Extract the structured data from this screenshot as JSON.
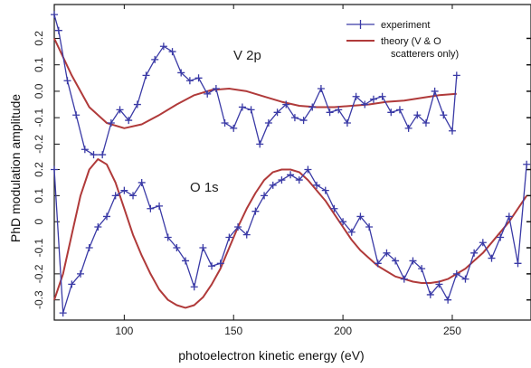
{
  "chart_data": {
    "type": "line",
    "title": "",
    "xlabel": "photoelectron kinetic energy (eV)",
    "ylabel": "PhD modulation amplitude",
    "xlim": [
      68,
      286
    ],
    "x_tick_labels": [
      "100",
      "150",
      "200",
      "250"
    ],
    "x_tick_values": [
      100,
      150,
      200,
      250
    ],
    "legend": {
      "placement": "top-right",
      "entries": [
        {
          "label": "experiment",
          "color": "#3a3aa6"
        },
        {
          "label": "theory (V & O",
          "label_line2": "scatterers only)",
          "color": "#b03a3a"
        }
      ]
    },
    "colors": {
      "experiment": "#3a3aa6",
      "theory": "#b03a3a"
    },
    "panels": [
      {
        "name": "V 2p",
        "ylim": [
          -0.25,
          0.27
        ],
        "y_tick_labels": [
          "0.2",
          "0.1",
          "0.0",
          "-0.1",
          "-0.2"
        ],
        "y_tick_values": [
          0.2,
          0.1,
          0.0,
          -0.1,
          -0.2
        ],
        "series": [
          {
            "role": "experiment",
            "x": [
              68,
              70,
              74,
              78,
              82,
              86,
              90,
              94,
              98,
              102,
              106,
              110,
              114,
              118,
              122,
              126,
              130,
              134,
              138,
              142,
              146,
              150,
              154,
              158,
              162,
              166,
              170,
              174,
              178,
              182,
              186,
              190,
              194,
              198,
              202,
              206,
              210,
              214,
              218,
              222,
              226,
              230,
              234,
              238,
              242,
              246,
              250,
              252
            ],
            "y": [
              0.29,
              0.23,
              0.04,
              -0.09,
              -0.22,
              -0.24,
              -0.24,
              -0.12,
              -0.07,
              -0.11,
              -0.05,
              0.06,
              0.12,
              0.17,
              0.15,
              0.07,
              0.04,
              0.05,
              -0.01,
              0.01,
              -0.12,
              -0.14,
              -0.06,
              -0.07,
              -0.2,
              -0.12,
              -0.08,
              -0.05,
              -0.1,
              -0.11,
              -0.06,
              0.01,
              -0.08,
              -0.07,
              -0.12,
              -0.02,
              -0.05,
              -0.03,
              -0.02,
              -0.08,
              -0.07,
              -0.14,
              -0.09,
              -0.12,
              0.0,
              -0.09,
              -0.15,
              0.06
            ]
          },
          {
            "role": "theory",
            "x": [
              68,
              76,
              84,
              92,
              100,
              108,
              116,
              124,
              132,
              140,
              148,
              156,
              164,
              172,
              180,
              188,
              196,
              204,
              212,
              220,
              228,
              236,
              244,
              252
            ],
            "y": [
              0.2,
              0.06,
              -0.06,
              -0.12,
              -0.14,
              -0.125,
              -0.09,
              -0.05,
              -0.015,
              0.005,
              0.01,
              0.0,
              -0.02,
              -0.04,
              -0.055,
              -0.06,
              -0.06,
              -0.055,
              -0.05,
              -0.04,
              -0.035,
              -0.025,
              -0.015,
              -0.01
            ]
          }
        ]
      },
      {
        "name": "O 1s",
        "ylim": [
          -0.36,
          0.24
        ],
        "y_tick_labels": [
          "0.2",
          "0.1",
          "0",
          "-0.1",
          "-0.2",
          "-0.3"
        ],
        "y_tick_values": [
          0.2,
          0.1,
          0.0,
          -0.1,
          -0.2,
          -0.3
        ],
        "series": [
          {
            "role": "experiment",
            "x": [
              68,
              72,
              76,
              80,
              84,
              88,
              92,
              96,
              100,
              104,
              108,
              112,
              116,
              120,
              124,
              128,
              132,
              136,
              140,
              144,
              148,
              152,
              156,
              160,
              164,
              168,
              172,
              176,
              180,
              184,
              188,
              192,
              196,
              200,
              204,
              208,
              212,
              216,
              220,
              224,
              228,
              232,
              236,
              240,
              244,
              248,
              252,
              256,
              260,
              264,
              268,
              272,
              276,
              280,
              284
            ],
            "y": [
              0.2,
              -0.35,
              -0.24,
              -0.2,
              -0.1,
              -0.02,
              0.02,
              0.1,
              0.12,
              0.1,
              0.15,
              0.05,
              0.06,
              -0.06,
              -0.1,
              -0.15,
              -0.25,
              -0.1,
              -0.17,
              -0.16,
              -0.06,
              -0.02,
              -0.05,
              0.04,
              0.1,
              0.14,
              0.16,
              0.18,
              0.16,
              0.2,
              0.14,
              0.12,
              0.05,
              0.0,
              -0.04,
              0.02,
              -0.02,
              -0.16,
              -0.12,
              -0.15,
              -0.22,
              -0.15,
              -0.18,
              -0.28,
              -0.24,
              -0.3,
              -0.2,
              -0.22,
              -0.12,
              -0.08,
              -0.14,
              -0.06,
              0.02,
              -0.16,
              0.22
            ]
          },
          {
            "role": "theory",
            "x": [
              68,
              72,
              76,
              80,
              84,
              88,
              92,
              96,
              100,
              104,
              108,
              112,
              116,
              120,
              124,
              128,
              132,
              136,
              140,
              144,
              148,
              152,
              156,
              160,
              164,
              168,
              172,
              176,
              180,
              184,
              188,
              192,
              196,
              200,
              204,
              208,
              212,
              216,
              220,
              224,
              228,
              232,
              236,
              240,
              244,
              248,
              252,
              256,
              260,
              264,
              268,
              272,
              276,
              280,
              284
            ],
            "y": [
              -0.3,
              -0.2,
              -0.05,
              0.1,
              0.2,
              0.24,
              0.22,
              0.15,
              0.05,
              -0.05,
              -0.13,
              -0.2,
              -0.26,
              -0.3,
              -0.32,
              -0.33,
              -0.32,
              -0.29,
              -0.24,
              -0.18,
              -0.1,
              -0.02,
              0.05,
              0.11,
              0.16,
              0.19,
              0.2,
              0.2,
              0.19,
              0.16,
              0.12,
              0.08,
              0.03,
              -0.02,
              -0.07,
              -0.11,
              -0.14,
              -0.17,
              -0.19,
              -0.21,
              -0.22,
              -0.23,
              -0.235,
              -0.235,
              -0.23,
              -0.22,
              -0.2,
              -0.18,
              -0.15,
              -0.12,
              -0.08,
              -0.04,
              0.0,
              0.05,
              0.1
            ]
          }
        ]
      }
    ]
  }
}
